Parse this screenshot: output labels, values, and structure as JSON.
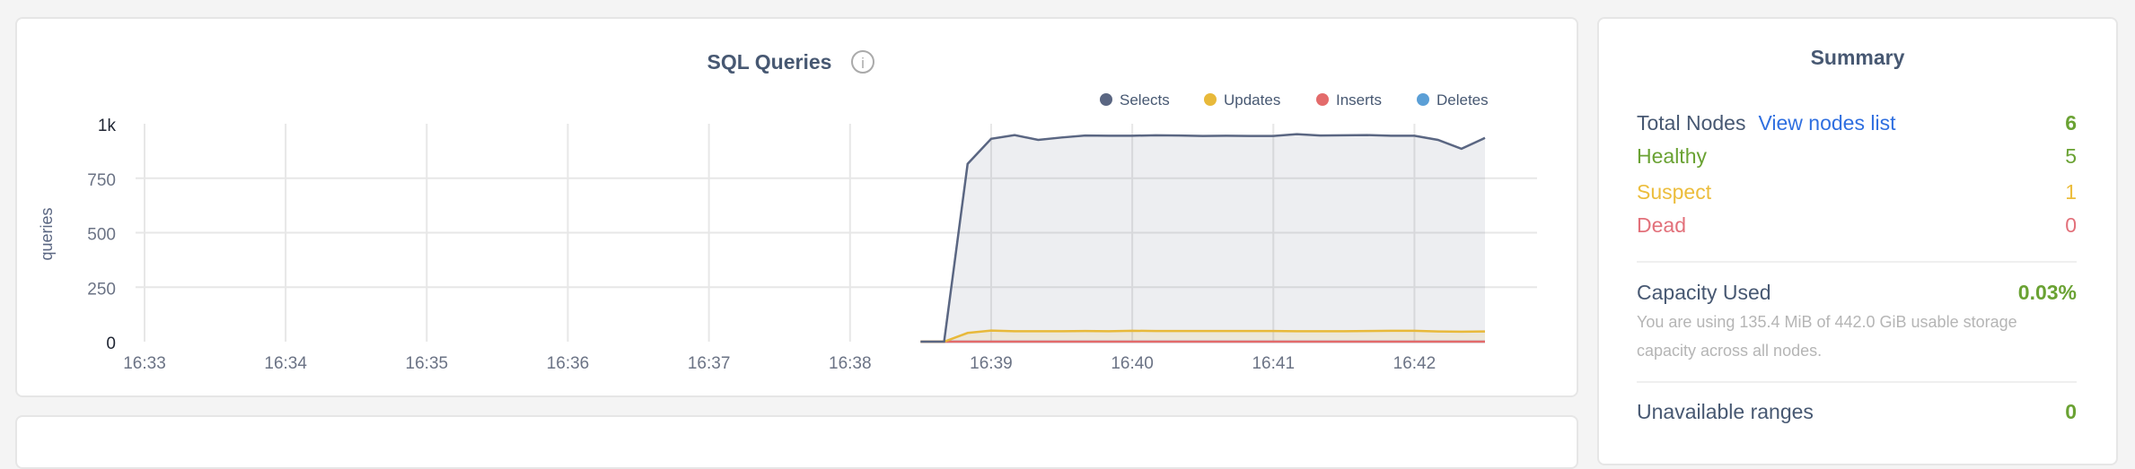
{
  "chart_card": {
    "title": "SQL Queries",
    "info_icon": "info-circle-icon"
  },
  "chart_data": {
    "type": "area",
    "title": "SQL Queries",
    "ylabel": "queries",
    "xlabel": "",
    "ylim": [
      0,
      1000
    ],
    "y_ticks": [
      "0",
      "250",
      "500",
      "750",
      "1k"
    ],
    "y_tick_values": [
      0,
      250,
      500,
      750,
      1000
    ],
    "x_ticks": [
      "16:33",
      "16:34",
      "16:35",
      "16:36",
      "16:37",
      "16:38",
      "16:39",
      "16:40",
      "16:41",
      "16:42"
    ],
    "xlim": [
      "16:33:00",
      "16:42:30"
    ],
    "grid": true,
    "legend_placement": "top-right",
    "x": [
      "16:38:30",
      "16:38:40",
      "16:38:50",
      "16:39:00",
      "16:39:10",
      "16:39:20",
      "16:39:30",
      "16:39:40",
      "16:39:50",
      "16:40:00",
      "16:40:10",
      "16:40:20",
      "16:40:30",
      "16:40:40",
      "16:40:50",
      "16:41:00",
      "16:41:10",
      "16:41:20",
      "16:41:30",
      "16:41:40",
      "16:41:50",
      "16:42:00",
      "16:42:10",
      "16:42:20",
      "16:42:30"
    ],
    "series": [
      {
        "name": "Selects",
        "color": "#5a6682",
        "values": [
          0,
          0,
          816,
          931,
          948,
          926,
          937,
          946,
          945,
          945,
          947,
          946,
          944,
          945,
          944,
          944,
          952,
          946,
          947,
          948,
          945,
          945,
          926,
          885,
          935
        ]
      },
      {
        "name": "Updates",
        "color": "#e8b93a",
        "values": [
          0,
          0,
          40,
          51,
          48,
          48,
          48,
          49,
          48,
          50,
          49,
          49,
          49,
          49,
          49,
          49,
          48,
          48,
          48,
          49,
          50,
          50,
          47,
          46,
          47
        ]
      },
      {
        "name": "Inserts",
        "color": "#e36b6b",
        "values": [
          0,
          0,
          0,
          0,
          0,
          0,
          0,
          0,
          0,
          0,
          0,
          0,
          0,
          0,
          0,
          0,
          0,
          0,
          0,
          0,
          0,
          0,
          0,
          0,
          0
        ]
      },
      {
        "name": "Deletes",
        "color": "#5b9fd6",
        "values": [
          0,
          0,
          0,
          0,
          0,
          0,
          0,
          0,
          0,
          0,
          0,
          0,
          0,
          0,
          0,
          0,
          0,
          0,
          0,
          0,
          0,
          0,
          0,
          0,
          0
        ]
      }
    ]
  },
  "summary": {
    "title": "Summary",
    "total_nodes_label": "Total Nodes",
    "view_nodes_link": "View nodes list",
    "total_nodes_value": "6",
    "healthy_label": "Healthy",
    "healthy_value": "5",
    "suspect_label": "Suspect",
    "suspect_value": "1",
    "dead_label": "Dead",
    "dead_value": "0",
    "capacity_label": "Capacity Used",
    "capacity_value": "0.03%",
    "capacity_desc": "You are using 135.4 MiB of 442.0 GiB usable storage capacity across all nodes.",
    "unavailable_label": "Unavailable ranges",
    "unavailable_value": "0",
    "colors": {
      "text": "#475872",
      "green": "#6aa233",
      "yellow": "#ecbd3c",
      "red": "#e2707a",
      "link": "#2f6fe0"
    }
  }
}
